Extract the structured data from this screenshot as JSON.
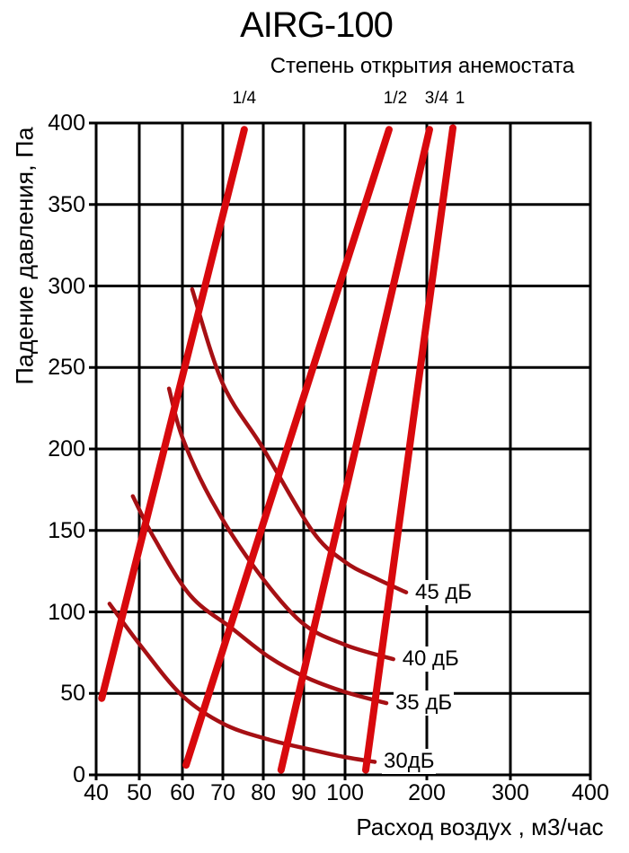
{
  "chart_data": {
    "type": "line",
    "title": "AIRG-100",
    "subtitle": "Степень открытия анемостата",
    "xlabel": "Расход воздух , м3/час",
    "ylabel": "Падение давления, Па",
    "grid": true,
    "legend_position": "inline-right",
    "colors": {
      "opening_lines": "#d8090d",
      "noise_curves": "#a61014",
      "grid": "#000000",
      "text": "#000000"
    },
    "x_axis": {
      "scale": "log-like-segmented",
      "ticks": [
        40,
        50,
        60,
        70,
        80,
        90,
        100,
        200,
        300,
        400
      ],
      "range": [
        40,
        400
      ]
    },
    "y_axis": {
      "min": 0,
      "max": 400,
      "ticks": [
        0,
        50,
        100,
        150,
        200,
        250,
        300,
        350,
        400
      ]
    },
    "opening_lines": [
      {
        "label": "1/4",
        "points": [
          [
            41.3,
            47
          ],
          [
            75.3,
            396
          ]
        ]
      },
      {
        "label": "1/2",
        "points": [
          [
            60.9,
            6
          ],
          [
            153.8,
            396
          ]
        ]
      },
      {
        "label": "3/4",
        "points": [
          [
            84.4,
            3
          ],
          [
            203.2,
            396
          ]
        ]
      },
      {
        "label": "1",
        "points": [
          [
            125.3,
            3
          ],
          [
            231.2,
            397
          ]
        ]
      }
    ],
    "noise_curves": [
      {
        "label": "45 дБ",
        "points": [
          [
            62.4,
            298
          ],
          [
            70,
            240
          ],
          [
            79.8,
            201
          ],
          [
            92,
            150
          ],
          [
            99.8,
            131
          ],
          [
            136,
            121
          ],
          [
            174.7,
            112
          ]
        ]
      },
      {
        "label": "40 дБ",
        "points": [
          [
            56.9,
            237
          ],
          [
            60,
            207
          ],
          [
            67.1,
            169
          ],
          [
            77.6,
            128
          ],
          [
            89.3,
            94
          ],
          [
            99.8,
            80
          ],
          [
            159,
            71
          ]
        ]
      },
      {
        "label": "35 дБ",
        "points": [
          [
            48.5,
            171
          ],
          [
            53.5,
            145
          ],
          [
            62,
            110
          ],
          [
            72.2,
            90
          ],
          [
            81.6,
            72
          ],
          [
            90.4,
            60
          ],
          [
            99.8,
            51
          ],
          [
            150.5,
            44
          ]
        ]
      },
      {
        "label": "30дБ",
        "points": [
          [
            43.1,
            105
          ],
          [
            50.4,
            79
          ],
          [
            60,
            48.5
          ],
          [
            70.4,
            31
          ],
          [
            81.6,
            21.5
          ],
          [
            92.6,
            15
          ],
          [
            99.8,
            11
          ],
          [
            136.3,
            8
          ]
        ]
      }
    ]
  }
}
